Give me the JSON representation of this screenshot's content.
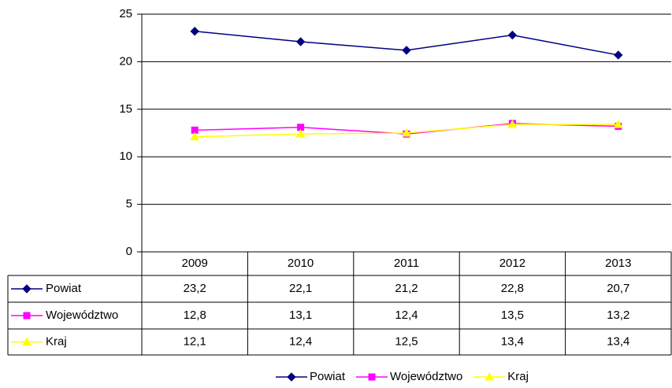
{
  "chart_data": {
    "type": "line",
    "categories": [
      "2009",
      "2010",
      "2011",
      "2012",
      "2013"
    ],
    "series": [
      {
        "name": "Powiat",
        "color": "#000080",
        "marker": "diamond",
        "values": [
          23.2,
          22.1,
          21.2,
          22.8,
          20.7
        ],
        "value_labels": [
          "23,2",
          "22,1",
          "21,2",
          "22,8",
          "20,7"
        ]
      },
      {
        "name": "Województwo",
        "color": "#ff00ff",
        "marker": "square",
        "values": [
          12.8,
          13.1,
          12.4,
          13.5,
          13.2
        ],
        "value_labels": [
          "12,8",
          "13,1",
          "12,4",
          "13,5",
          "13,2"
        ]
      },
      {
        "name": "Kraj",
        "color": "#ffff00",
        "marker": "triangle",
        "values": [
          12.1,
          12.4,
          12.5,
          13.4,
          13.4
        ],
        "value_labels": [
          "12,1",
          "12,4",
          "12,5",
          "13,4",
          "13,4"
        ]
      }
    ],
    "ylim": [
      0,
      25
    ],
    "yticks": [
      0,
      5,
      10,
      15,
      20,
      25
    ],
    "grid": true,
    "legend": "bottom"
  }
}
